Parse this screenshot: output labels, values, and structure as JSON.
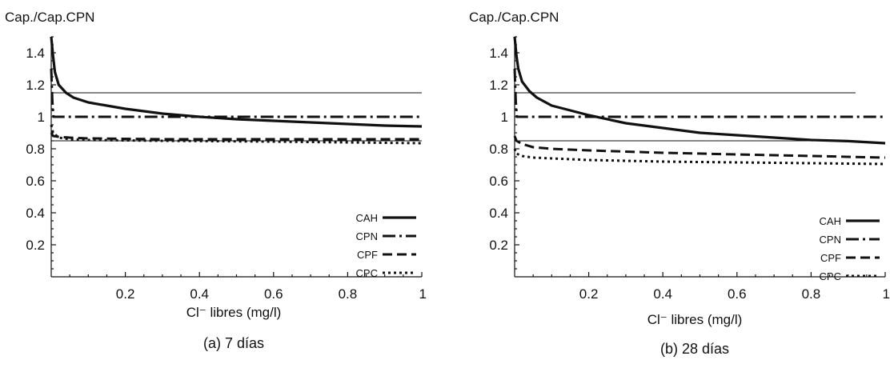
{
  "chart_data": [
    {
      "type": "line",
      "title": "",
      "caption": "(a) 7 días",
      "xlabel": "Cl⁻ libres (mg/l)",
      "ylabel": "Cap./Cap.CPN",
      "xlim": [
        0,
        1
      ],
      "ylim": [
        0,
        1.5
      ],
      "x_ticks": [
        "0.2",
        "0.4",
        "0.6",
        "0.8",
        "1"
      ],
      "x_tick_values": [
        0.2,
        0.4,
        0.6,
        0.8,
        1
      ],
      "y_ticks": [
        "0.2",
        "0.4",
        "0.6",
        "0.8",
        "1",
        "1.2",
        "1.4"
      ],
      "y_tick_values": [
        0.2,
        0.4,
        0.6,
        0.8,
        1,
        1.2,
        1.4
      ],
      "reference_lines": [
        1.15,
        0.85
      ],
      "grid": false,
      "legend_position": "bottom-right",
      "series": [
        {
          "name": "CAH",
          "style": "solid",
          "x": [
            0.0,
            0.005,
            0.01,
            0.02,
            0.04,
            0.06,
            0.1,
            0.15,
            0.2,
            0.3,
            0.4,
            0.5,
            0.6,
            0.7,
            0.8,
            0.9,
            1.0
          ],
          "y": [
            1.5,
            1.38,
            1.28,
            1.2,
            1.15,
            1.12,
            1.09,
            1.07,
            1.05,
            1.02,
            1.0,
            0.985,
            0.975,
            0.965,
            0.955,
            0.945,
            0.94
          ]
        },
        {
          "name": "CPN",
          "style": "dashdot",
          "x": [
            0.0,
            0.003,
            0.006,
            1.0
          ],
          "y": [
            1.3,
            1.1,
            1.0,
            1.0
          ]
        },
        {
          "name": "CPF",
          "style": "dash",
          "x": [
            0.0,
            0.005,
            0.02,
            0.05,
            0.1,
            0.3,
            0.6,
            1.0
          ],
          "y": [
            0.9,
            0.88,
            0.875,
            0.87,
            0.865,
            0.86,
            0.86,
            0.86
          ]
        },
        {
          "name": "CPC",
          "style": "dot",
          "x": [
            0.0,
            0.005,
            0.02,
            0.05,
            0.1,
            0.3,
            0.6,
            1.0
          ],
          "y": [
            0.95,
            0.9,
            0.87,
            0.86,
            0.855,
            0.85,
            0.845,
            0.835
          ]
        }
      ]
    },
    {
      "type": "line",
      "title": "",
      "caption": "(b) 28 días",
      "xlabel": "Cl⁻ libres (mg/l)",
      "ylabel": "Cap./Cap.CPN",
      "xlim": [
        0,
        1
      ],
      "ylim": [
        0,
        1.5
      ],
      "x_ticks": [
        "0.2",
        "0.4",
        "0.6",
        "0.8",
        "1"
      ],
      "x_tick_values": [
        0.2,
        0.4,
        0.6,
        0.8,
        1
      ],
      "y_ticks": [
        "0.2",
        "0.4",
        "0.6",
        "0.8",
        "1",
        "1.2",
        "1.4"
      ],
      "y_tick_values": [
        0.2,
        0.4,
        0.6,
        0.8,
        1,
        1.2,
        1.4
      ],
      "reference_lines": [
        1.15,
        0.85
      ],
      "grid": false,
      "legend_position": "bottom-right",
      "series": [
        {
          "name": "CAH",
          "style": "solid",
          "x": [
            0.0,
            0.005,
            0.01,
            0.02,
            0.04,
            0.06,
            0.1,
            0.15,
            0.2,
            0.3,
            0.4,
            0.5,
            0.6,
            0.7,
            0.8,
            0.9,
            1.0
          ],
          "y": [
            1.5,
            1.38,
            1.3,
            1.22,
            1.16,
            1.12,
            1.07,
            1.04,
            1.01,
            0.96,
            0.93,
            0.9,
            0.885,
            0.87,
            0.855,
            0.848,
            0.835
          ]
        },
        {
          "name": "CPN",
          "style": "dashdot",
          "x": [
            0.0,
            0.003,
            0.006,
            1.0
          ],
          "y": [
            1.3,
            1.1,
            1.0,
            1.0
          ]
        },
        {
          "name": "CPF",
          "style": "dash",
          "x": [
            0.0,
            0.005,
            0.02,
            0.05,
            0.1,
            0.2,
            0.4,
            0.6,
            0.8,
            1.0
          ],
          "y": [
            0.88,
            0.85,
            0.83,
            0.81,
            0.8,
            0.79,
            0.775,
            0.765,
            0.755,
            0.745
          ]
        },
        {
          "name": "CPC",
          "style": "dot",
          "x": [
            0.0,
            0.005,
            0.02,
            0.05,
            0.1,
            0.2,
            0.4,
            0.6,
            0.8,
            1.0
          ],
          "y": [
            0.8,
            0.77,
            0.755,
            0.745,
            0.74,
            0.73,
            0.72,
            0.715,
            0.71,
            0.705
          ]
        }
      ]
    }
  ],
  "styles": {
    "line_color": "#111111",
    "background": "#ffffff"
  }
}
